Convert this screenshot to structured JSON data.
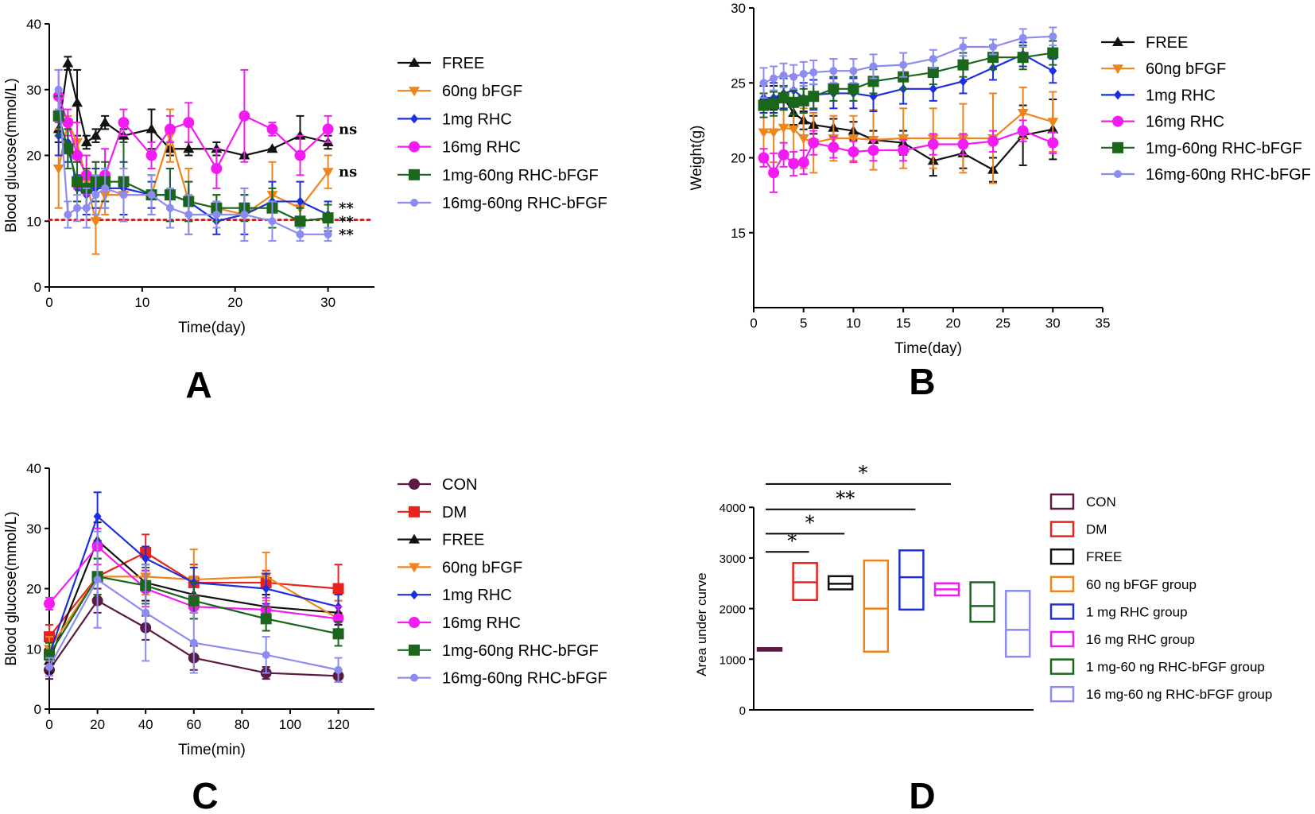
{
  "figure": {
    "panel_labels": [
      "A",
      "B",
      "C",
      "D"
    ],
    "colors": {
      "CON": "#5b1a44",
      "DM": "#e8221c",
      "FREE": "#111111",
      "60ng bFGF": "#f0841c",
      "1mg RHC": "#1c2fe0",
      "16mg RHC": "#f21bf2",
      "1mg-60ng RHC-bFGF": "#19661c",
      "16mg-60ng RHC-bFGF": "#8c8cf0",
      "threshold": "#ee1111"
    }
  },
  "chart_data": [
    {
      "panel": "A",
      "type": "line",
      "xlabel": "Time(day)",
      "ylabel": "Blood glucose(mmol/L)",
      "xlim": [
        0,
        35
      ],
      "ylim": [
        0,
        40
      ],
      "xticks": [
        0,
        10,
        20,
        30
      ],
      "yticks": [
        0,
        10,
        20,
        30,
        40
      ],
      "threshold": 10.2,
      "legend_labels": [
        "FREE",
        "60ng bFGF",
        "1mg RHC",
        "16mg RHC",
        "1mg-60ng RHC-bFGF",
        "16mg-60ng RHC-bFGF"
      ],
      "annotations": [
        "ns",
        "ns",
        "**",
        "**",
        "**"
      ],
      "annotation_y": [
        24,
        17.5,
        12,
        10,
        8
      ],
      "series": [
        {
          "name": "FREE",
          "marker": "triangle",
          "x": [
            1,
            2,
            3,
            4,
            5,
            6,
            8,
            11,
            13,
            15,
            18,
            21,
            24,
            27,
            30
          ],
          "y": [
            24,
            34,
            28,
            22,
            23,
            25,
            23,
            24,
            21,
            21,
            21,
            20,
            21,
            23,
            22
          ],
          "err": [
            2,
            1,
            5,
            1,
            1,
            1,
            1,
            3,
            1,
            1,
            1,
            0,
            0,
            3,
            1
          ]
        },
        {
          "name": "60ng bFGF",
          "marker": "triangle-down",
          "x": [
            1,
            2,
            3,
            4,
            5,
            6,
            8,
            11,
            13,
            15,
            18,
            21,
            24,
            27,
            30
          ],
          "y": [
            18,
            25,
            22,
            16,
            10,
            14,
            14,
            14,
            23,
            13,
            12,
            11,
            14,
            12,
            17.5
          ],
          "err": [
            6,
            1,
            3,
            4,
            5,
            3,
            4,
            3,
            4,
            5,
            2,
            4,
            5,
            4,
            2.5
          ]
        },
        {
          "name": "1mg RHC",
          "marker": "diamond",
          "x": [
            1,
            2,
            3,
            4,
            5,
            6,
            8,
            11,
            13,
            15,
            18,
            21,
            24,
            27,
            30
          ],
          "y": [
            23,
            22,
            15,
            14,
            15,
            15,
            15,
            14,
            14,
            13,
            10,
            11,
            13,
            13,
            11
          ],
          "err": [
            3,
            3,
            2,
            3,
            3,
            3,
            4,
            2,
            4,
            3,
            2,
            3,
            3,
            3,
            2
          ]
        },
        {
          "name": "16mg RHC",
          "marker": "circle",
          "x": [
            1,
            2,
            3,
            4,
            5,
            6,
            8,
            11,
            13,
            15,
            18,
            21,
            24,
            27,
            30
          ],
          "y": [
            29,
            25,
            20,
            17,
            16,
            17,
            25,
            20,
            24,
            25,
            18,
            26,
            24,
            20,
            24
          ],
          "err": [
            4,
            2,
            5,
            3,
            3,
            4,
            2,
            2,
            2,
            3,
            3,
            7,
            1,
            3,
            2
          ]
        },
        {
          "name": "1mg-60ng RHC-bFGF",
          "marker": "square",
          "x": [
            1,
            2,
            3,
            4,
            5,
            6,
            8,
            11,
            13,
            15,
            18,
            21,
            24,
            27,
            30
          ],
          "y": [
            26,
            21,
            16,
            15,
            16,
            16,
            16,
            14,
            14,
            13,
            12,
            12,
            12,
            10,
            10.5
          ],
          "err": [
            3,
            3,
            3,
            3,
            3,
            3,
            6,
            3,
            4,
            3,
            2,
            2,
            3,
            2,
            2
          ]
        },
        {
          "name": "16mg-60ng RHC-bFGF",
          "marker": "circle-small",
          "x": [
            1,
            2,
            3,
            4,
            5,
            6,
            8,
            11,
            13,
            15,
            18,
            21,
            24,
            27,
            30
          ],
          "y": [
            30,
            11,
            12,
            12,
            14,
            15,
            14,
            14,
            12,
            11,
            11,
            11,
            10,
            8,
            8
          ],
          "err": [
            3,
            2,
            2,
            3,
            3,
            3,
            4,
            3,
            3,
            3,
            2,
            4,
            3,
            1,
            1
          ]
        }
      ]
    },
    {
      "panel": "B",
      "type": "line",
      "xlabel": "Time(day)",
      "ylabel": "Weight(g)",
      "xlim": [
        0,
        35
      ],
      "ylim": [
        10,
        30
      ],
      "xticks": [
        0,
        5,
        10,
        15,
        20,
        25,
        30,
        35
      ],
      "yticks": [
        15,
        20,
        25,
        30
      ],
      "legend_labels": [
        "FREE",
        "60ng bFGF",
        "1mg RHC",
        "16mg RHC",
        "1mg-60ng RHC-bFGF",
        "16mg-60ng RHC-bFGF"
      ],
      "series": [
        {
          "name": "FREE",
          "marker": "triangle",
          "x": [
            1,
            2,
            3,
            4,
            5,
            6,
            8,
            10,
            12,
            15,
            18,
            21,
            24,
            27,
            30
          ],
          "y": [
            24,
            24,
            24,
            23,
            22.5,
            22.2,
            22,
            21.8,
            21.2,
            21,
            19.8,
            20.3,
            19.2,
            21.5,
            21.9
          ],
          "err": [
            0.8,
            0.8,
            0.8,
            0.8,
            0.6,
            0.6,
            0.6,
            0.6,
            0.6,
            0.8,
            1,
            1,
            0.8,
            2,
            2
          ]
        },
        {
          "name": "60ng bFGF",
          "marker": "triangle-down",
          "x": [
            1,
            2,
            3,
            4,
            5,
            6,
            8,
            10,
            12,
            15,
            18,
            21,
            24,
            27,
            30
          ],
          "y": [
            21.7,
            21.7,
            22,
            21.9,
            21.3,
            21,
            21.3,
            21.3,
            21.2,
            21.3,
            21.3,
            21.3,
            21.3,
            23,
            22.4
          ],
          "err": [
            2,
            2,
            2,
            2,
            2,
            2,
            1.5,
            1.5,
            2,
            2,
            2,
            2.3,
            3,
            1.7,
            2
          ]
        },
        {
          "name": "1mg RHC",
          "marker": "diamond",
          "x": [
            1,
            2,
            3,
            4,
            5,
            6,
            8,
            10,
            12,
            15,
            18,
            21,
            24,
            27,
            30
          ],
          "y": [
            24,
            24,
            24.3,
            24.5,
            24,
            24.2,
            24.3,
            24.3,
            24.1,
            24.6,
            24.6,
            25.1,
            26,
            26.9,
            25.8
          ],
          "err": [
            1,
            1,
            1,
            1,
            1,
            1,
            1,
            1,
            1,
            1,
            0.8,
            0.8,
            0.8,
            0.8,
            0.8
          ]
        },
        {
          "name": "16mg RHC",
          "marker": "circle",
          "x": [
            1,
            2,
            3,
            4,
            5,
            6,
            8,
            10,
            12,
            15,
            18,
            21,
            24,
            27,
            30
          ],
          "y": [
            20,
            19,
            20.2,
            19.6,
            19.7,
            21,
            20.7,
            20.4,
            20.5,
            20.5,
            20.9,
            20.9,
            21.1,
            21.8,
            21
          ],
          "err": [
            0.6,
            1.3,
            0.8,
            0.8,
            0.8,
            0.8,
            0.7,
            0.7,
            0.7,
            0.7,
            0.7,
            0.7,
            0.7,
            0.7,
            0.7
          ]
        },
        {
          "name": "1mg-60ng RHC-bFGF",
          "marker": "square",
          "x": [
            1,
            2,
            3,
            4,
            5,
            6,
            8,
            10,
            12,
            15,
            18,
            21,
            24,
            27,
            30
          ],
          "y": [
            23.5,
            23.6,
            24,
            23.7,
            23.8,
            24.1,
            24.6,
            24.6,
            25.1,
            25.4,
            25.7,
            26.2,
            26.7,
            26.7,
            27
          ],
          "err": [
            0.8,
            0.8,
            0.8,
            0.8,
            0.8,
            0.8,
            0.8,
            0.8,
            0.8,
            0.8,
            0.8,
            0.8,
            0.8,
            0.8,
            0.8
          ]
        },
        {
          "name": "16mg-60ng RHC-bFGF",
          "marker": "circle-small",
          "x": [
            1,
            2,
            3,
            4,
            5,
            6,
            8,
            10,
            12,
            15,
            18,
            21,
            24,
            27,
            30
          ],
          "y": [
            25,
            25.3,
            25.5,
            25.4,
            25.6,
            25.7,
            25.8,
            25.8,
            26.1,
            26.2,
            26.6,
            27.4,
            27.4,
            28,
            28.1
          ],
          "err": [
            1,
            0.8,
            0.8,
            0.8,
            0.8,
            0.8,
            0.8,
            0.8,
            0.8,
            0.8,
            0.6,
            0.6,
            0.5,
            0.6,
            0.6
          ]
        }
      ]
    },
    {
      "panel": "C",
      "type": "line",
      "xlabel": "Time(min)",
      "ylabel": "Blood glucose(mmol/L)",
      "xlim": [
        0,
        135
      ],
      "ylim": [
        0,
        40
      ],
      "xticks": [
        0,
        20,
        40,
        60,
        80,
        100,
        120
      ],
      "yticks": [
        0,
        10,
        20,
        30,
        40
      ],
      "legend_labels": [
        "CON",
        "DM",
        "FREE",
        "60ng bFGF",
        "1mg RHC",
        "16mg RHC",
        "1mg-60ng RHC-bFGF",
        "16mg-60ng RHC-bFGF"
      ],
      "series": [
        {
          "name": "CON",
          "marker": "circle",
          "x": [
            0,
            20,
            40,
            60,
            90,
            120
          ],
          "y": [
            6.5,
            18,
            13.5,
            8.5,
            6,
            5.5
          ],
          "err": [
            1.5,
            2,
            2,
            2,
            1,
            1
          ]
        },
        {
          "name": "DM",
          "marker": "square",
          "x": [
            0,
            20,
            40,
            60,
            90,
            120
          ],
          "y": [
            12,
            22,
            26,
            21,
            21,
            20
          ],
          "err": [
            2,
            3,
            3,
            3,
            2,
            4
          ]
        },
        {
          "name": "FREE",
          "marker": "triangle",
          "x": [
            0,
            20,
            40,
            60,
            90,
            120
          ],
          "y": [
            8,
            28,
            21,
            19,
            17,
            16
          ],
          "err": [
            2,
            3,
            3,
            3,
            2,
            2
          ]
        },
        {
          "name": "60ng bFGF",
          "marker": "triangle-down",
          "x": [
            0,
            20,
            40,
            60,
            90,
            120
          ],
          "y": [
            10,
            22,
            22,
            21.5,
            22,
            15
          ],
          "err": [
            2,
            3,
            3,
            5,
            4,
            3
          ]
        },
        {
          "name": "1mg RHC",
          "marker": "diamond",
          "x": [
            0,
            20,
            40,
            60,
            90,
            120
          ],
          "y": [
            9,
            32,
            25,
            21,
            20,
            17
          ],
          "err": [
            2,
            4,
            2,
            2.5,
            2.5,
            2
          ]
        },
        {
          "name": "16mg RHC",
          "marker": "circle",
          "x": [
            0,
            20,
            40,
            60,
            90,
            120
          ],
          "y": [
            17.5,
            27,
            20,
            17,
            16.5,
            15
          ],
          "err": [
            1,
            3,
            3,
            2,
            2,
            2
          ]
        },
        {
          "name": "1mg-60ng RHC-bFGF",
          "marker": "square",
          "x": [
            0,
            20,
            40,
            60,
            90,
            120
          ],
          "y": [
            9,
            22,
            20.5,
            18,
            15,
            12.5
          ],
          "err": [
            2,
            3,
            3,
            3,
            2,
            2
          ]
        },
        {
          "name": "16mg-60ng RHC-bFGF",
          "marker": "circle-small",
          "x": [
            0,
            20,
            40,
            60,
            90,
            120
          ],
          "y": [
            7,
            21.5,
            16,
            11,
            9,
            6.5
          ],
          "err": [
            1.5,
            8,
            8,
            5,
            3,
            2
          ]
        }
      ]
    },
    {
      "panel": "D",
      "type": "box",
      "xlabel": "",
      "ylabel": "Area under curve",
      "ylim": [
        0,
        4600
      ],
      "yticks": [
        0,
        1000,
        2000,
        3000,
        4000
      ],
      "legend_labels": [
        "CON",
        "DM",
        "FREE",
        "60 ng bFGF group",
        "1 mg RHC group",
        "16 mg RHC group",
        "1 mg-60 ng RHC-bFGF group",
        "16 mg-60 ng RHC-bFGF group"
      ],
      "boxes": [
        {
          "name": "CON",
          "min": 1170,
          "median": 1200,
          "max": 1220
        },
        {
          "name": "DM",
          "min": 2170,
          "median": 2520,
          "max": 2900
        },
        {
          "name": "FREE",
          "min": 2380,
          "median": 2490,
          "max": 2640
        },
        {
          "name": "60 ng bFGF group",
          "min": 1150,
          "median": 2000,
          "max": 2950
        },
        {
          "name": "1 mg RHC group",
          "min": 1980,
          "median": 2620,
          "max": 3150
        },
        {
          "name": "16 mg RHC group",
          "min": 2260,
          "median": 2380,
          "max": 2500
        },
        {
          "name": "1 mg-60 ng RHC-bFGF group",
          "min": 1740,
          "median": 2050,
          "max": 2520
        },
        {
          "name": "16 mg-60 ng RHC-bFGF group",
          "min": 1050,
          "median": 1580,
          "max": 2350
        }
      ],
      "significance": [
        {
          "from": 0,
          "to": 1,
          "label": "*",
          "y": 3120
        },
        {
          "from": 0,
          "to": 2,
          "label": "*",
          "y": 3480
        },
        {
          "from": 0,
          "to": 4,
          "label": "**",
          "y": 3960
        },
        {
          "from": 0,
          "to": 5,
          "label": "*",
          "y": 4460
        }
      ]
    }
  ]
}
